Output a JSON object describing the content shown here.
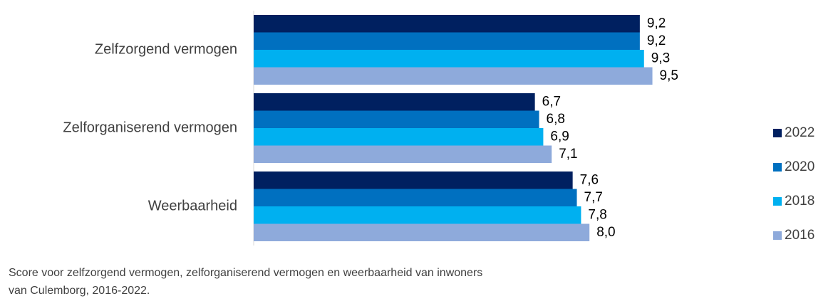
{
  "chart_data": {
    "type": "hbar",
    "categories": [
      "Zelfzorgend vermogen",
      "Zelforganiserend vermogen",
      "Weerbaarheid"
    ],
    "series": [
      {
        "name": "2022",
        "color": "#002060",
        "values": [
          9.2,
          6.7,
          7.6
        ],
        "value_labels": [
          "9,2",
          "6,7",
          "7,6"
        ]
      },
      {
        "name": "2020",
        "color": "#0070c0",
        "values": [
          9.2,
          6.8,
          7.7
        ],
        "value_labels": [
          "9,2",
          "6,8",
          "7,7"
        ]
      },
      {
        "name": "2018",
        "color": "#00b0f0",
        "values": [
          9.3,
          6.9,
          7.8
        ],
        "value_labels": [
          "9,3",
          "6,9",
          "7,8"
        ]
      },
      {
        "name": "2016",
        "color": "#8eaadb",
        "values": [
          9.5,
          7.1,
          8.0
        ],
        "value_labels": [
          "9,5",
          "7,1",
          "8,0"
        ]
      }
    ],
    "xlim": [
      0,
      10
    ],
    "legend": "right",
    "caption": [
      "Score voor zelfzorgend vermogen, zelforganiserend vermogen en weerbaarheid van inwoners",
      "van Culemborg, 2016-2022."
    ]
  }
}
